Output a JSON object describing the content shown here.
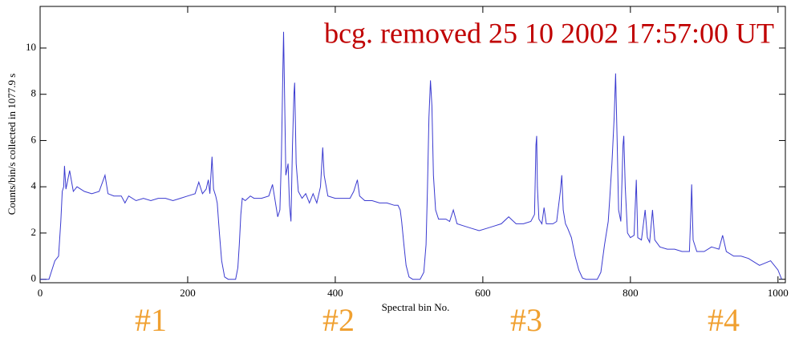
{
  "chart_data": {
    "type": "line",
    "title": "bcg. removed  25 10 2002   17:57:00 UT",
    "x_label": "Spectral bin No.",
    "y_label": "Counts/bin/s collected in  1077.9 s",
    "annotations": [
      "#1",
      "#2",
      "#3",
      "#4"
    ],
    "color": "#3a3ad0",
    "xlim": [
      0,
      1010
    ],
    "ylim": [
      -0.15,
      11.8
    ],
    "xticks": [
      0,
      200,
      400,
      600,
      800,
      1000
    ],
    "yticks": [
      0,
      2,
      4,
      6,
      8,
      10
    ],
    "x": [
      0,
      12,
      15,
      20,
      25,
      28,
      30,
      32,
      33,
      35,
      40,
      45,
      50,
      60,
      70,
      80,
      88,
      92,
      100,
      110,
      115,
      120,
      130,
      140,
      150,
      160,
      170,
      180,
      190,
      200,
      210,
      215,
      220,
      225,
      228,
      230,
      233,
      235,
      238,
      240,
      243,
      246,
      250,
      255,
      265,
      268,
      270,
      272,
      274,
      278,
      285,
      290,
      300,
      310,
      315,
      318,
      322,
      325,
      327,
      329,
      330,
      331,
      333,
      336,
      338,
      340,
      342,
      344,
      345,
      347,
      350,
      355,
      360,
      365,
      370,
      375,
      380,
      383,
      385,
      390,
      400,
      410,
      420,
      425,
      430,
      433,
      440,
      450,
      460,
      470,
      480,
      485,
      488,
      490,
      493,
      496,
      500,
      505,
      515,
      520,
      523,
      525,
      527,
      529,
      531,
      533,
      536,
      540,
      550,
      555,
      560,
      565,
      575,
      585,
      595,
      605,
      615,
      625,
      635,
      645,
      655,
      665,
      670,
      672,
      673,
      674,
      676,
      680,
      683,
      686,
      695,
      700,
      705,
      707,
      709,
      712,
      715,
      720,
      725,
      730,
      735,
      740,
      755,
      760,
      765,
      770,
      772,
      775,
      778,
      780,
      782,
      784,
      787,
      790,
      791,
      793,
      796,
      800,
      805,
      808,
      810,
      815,
      820,
      823,
      826,
      830,
      833,
      840,
      850,
      860,
      870,
      880,
      882,
      883,
      885,
      890,
      900,
      910,
      920,
      925,
      930,
      940,
      950,
      960,
      975,
      990,
      1000,
      1005
    ],
    "values": [
      0,
      0,
      0.3,
      0.8,
      1.0,
      2.5,
      3.8,
      4.0,
      4.9,
      3.9,
      4.7,
      3.8,
      4.0,
      3.8,
      3.7,
      3.8,
      4.5,
      3.7,
      3.6,
      3.6,
      3.3,
      3.6,
      3.4,
      3.5,
      3.4,
      3.5,
      3.5,
      3.4,
      3.5,
      3.6,
      3.7,
      4.2,
      3.7,
      3.9,
      4.3,
      3.7,
      5.3,
      3.9,
      3.6,
      3.3,
      2.0,
      0.8,
      0.1,
      0,
      0,
      0.5,
      1.5,
      2.8,
      3.5,
      3.4,
      3.6,
      3.5,
      3.5,
      3.6,
      4.1,
      3.5,
      2.7,
      3.0,
      5.3,
      9.0,
      10.7,
      8.5,
      4.5,
      5.0,
      3.2,
      2.5,
      5.8,
      8.0,
      8.5,
      5.0,
      3.8,
      3.5,
      3.7,
      3.3,
      3.7,
      3.3,
      4.0,
      5.7,
      4.5,
      3.6,
      3.5,
      3.5,
      3.5,
      3.8,
      4.3,
      3.6,
      3.4,
      3.4,
      3.3,
      3.3,
      3.2,
      3.2,
      3.0,
      2.5,
      1.5,
      0.6,
      0.1,
      0,
      0,
      0.3,
      1.5,
      4.0,
      7.0,
      8.6,
      7.5,
      4.5,
      3.0,
      2.6,
      2.6,
      2.5,
      3.0,
      2.4,
      2.3,
      2.2,
      2.1,
      2.2,
      2.3,
      2.4,
      2.7,
      2.4,
      2.4,
      2.5,
      2.8,
      5.8,
      6.2,
      4.0,
      2.6,
      2.4,
      3.1,
      2.4,
      2.4,
      2.5,
      3.8,
      4.5,
      3.0,
      2.4,
      2.2,
      1.8,
      1.0,
      0.4,
      0.05,
      0,
      0,
      0.3,
      1.5,
      2.5,
      3.5,
      5.0,
      7.0,
      8.9,
      6.0,
      3.0,
      2.5,
      5.8,
      6.2,
      4.0,
      2.0,
      1.8,
      1.9,
      4.3,
      1.8,
      1.7,
      3.0,
      1.8,
      1.6,
      3.0,
      1.7,
      1.4,
      1.3,
      1.3,
      1.2,
      1.2,
      3.0,
      4.1,
      1.7,
      1.2,
      1.2,
      1.4,
      1.3,
      1.9,
      1.2,
      1.0,
      1.0,
      0.9,
      0.6,
      0.8,
      0.4,
      0
    ]
  }
}
